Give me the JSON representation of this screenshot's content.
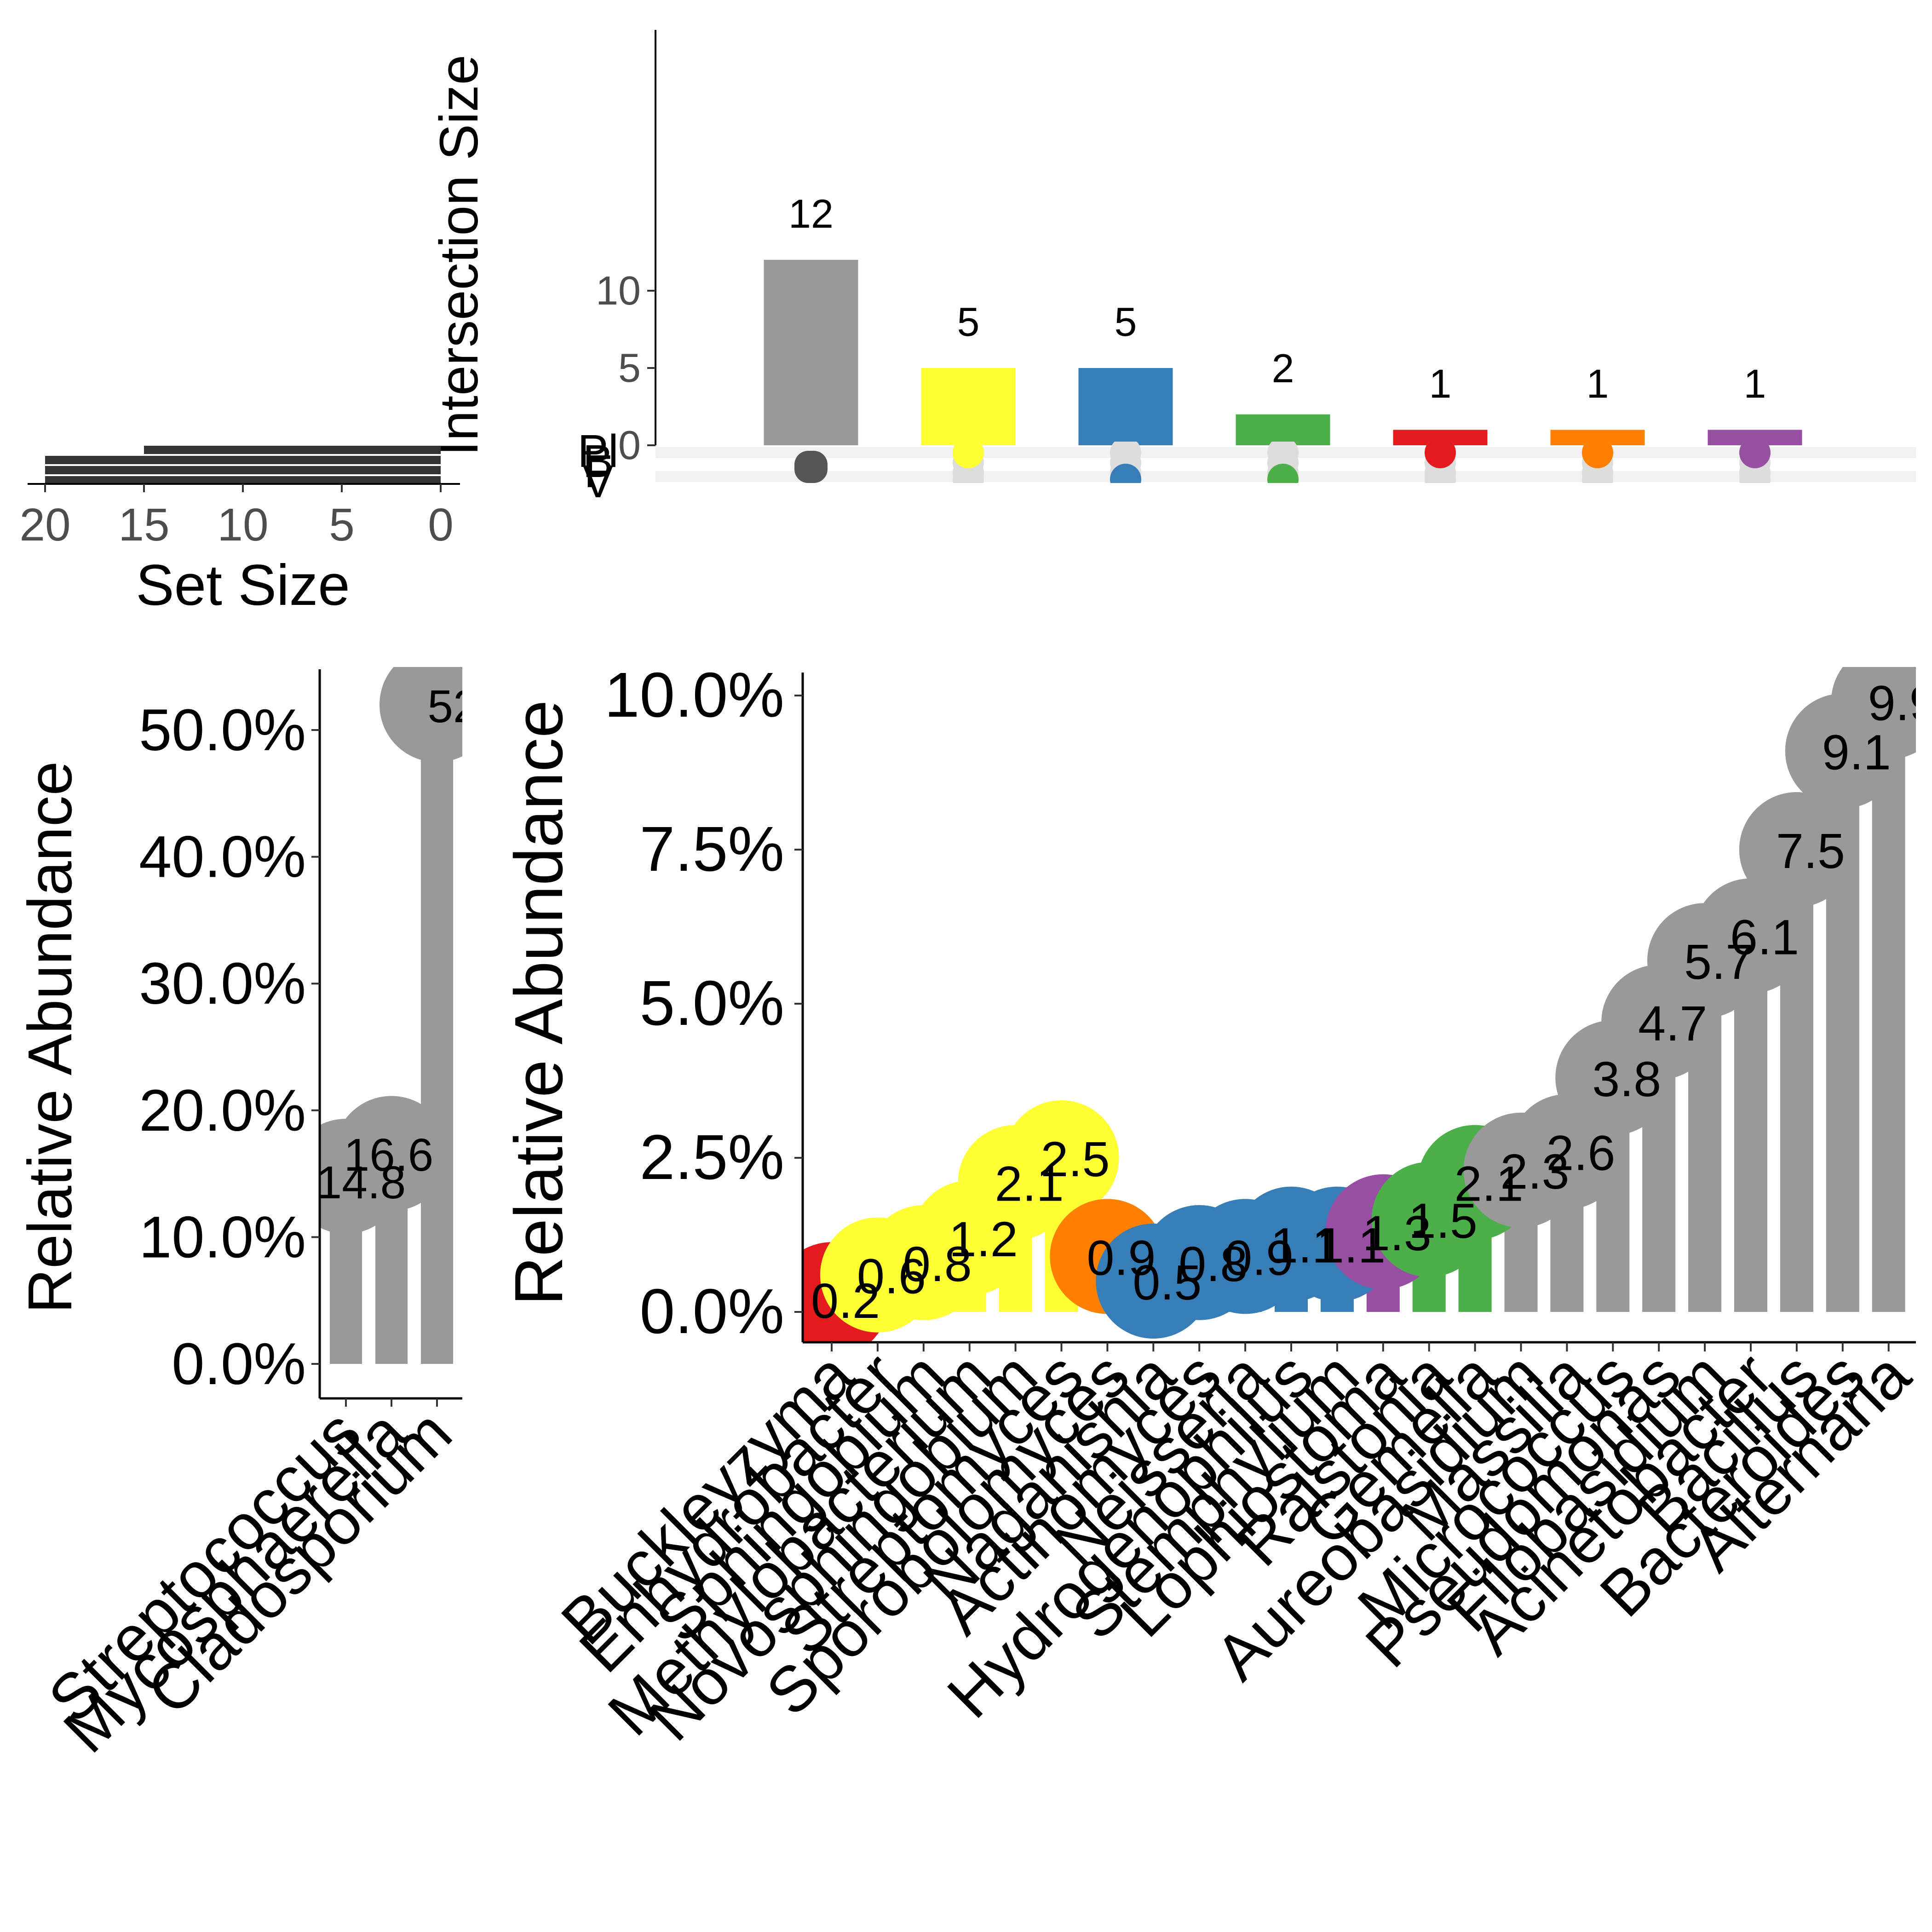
{
  "colors": {
    "gray": "#999999",
    "yellow": "#ffff33",
    "blue": "#377eb8",
    "green": "#4daf4a",
    "red": "#e41a1c",
    "orange": "#ff7f00",
    "purple": "#984ea3",
    "setbar": "#333333",
    "empty_dot": "#dddddd",
    "stripe": "#f2f2f2"
  },
  "chart_data": [
    {
      "type": "bar",
      "panel": "intersection-size",
      "ylabel": "Intersection Size",
      "yticks": [
        0,
        5,
        10
      ],
      "ylim": [
        0,
        13.5
      ],
      "categories": [
        "grey",
        "yellow",
        "blue",
        "green",
        "red",
        "orange",
        "purple"
      ],
      "values": [
        12,
        5,
        5,
        2,
        1,
        1,
        1
      ],
      "value_labels": [
        "12",
        "5",
        "5",
        "2",
        "1",
        "1",
        "1"
      ]
    },
    {
      "type": "bar",
      "panel": "set-size",
      "xlabel": "Set Size",
      "xticks": [
        20,
        15,
        10,
        5,
        0
      ],
      "xlim": [
        20,
        0
      ],
      "sets": [
        "Pl",
        "B",
        "F",
        "V"
      ],
      "values": [
        15,
        20,
        20,
        20
      ]
    },
    {
      "type": "bar",
      "panel": "core-abundance",
      "ylabel": "Relative Abundance",
      "yticks": [
        "0.0%",
        "10.0%",
        "20.0%",
        "30.0%",
        "40.0%",
        "50.0%"
      ],
      "ylim": [
        0,
        55
      ],
      "categories": [
        "Streptococcus",
        "Mycosphaerella",
        "Cladosporium"
      ],
      "values": [
        14.8,
        16.6,
        52
      ],
      "value_labels": [
        "14.8",
        "16.6",
        "52"
      ]
    },
    {
      "type": "bar",
      "panel": "genus-abundance",
      "ylabel": "Relative Abundance",
      "yticks": [
        "0.0%",
        "2.5%",
        "5.0%",
        "7.5%",
        "10.0%"
      ],
      "ylim": [
        0,
        10.2
      ],
      "categories": [
        "Buckleyzyma",
        "Enhydrobacter",
        "Sphingobium",
        "Methylobacterium",
        "Novosphingobium",
        "Streptomyces",
        "Sporobolomyces",
        "Naganishia",
        "Actinomyces",
        "Neisseria",
        "Hydrogenophilus",
        "Stemphylium",
        "Lophiostoma",
        "Ralstonia",
        "Gemella",
        "Aureobasidium",
        "Massilia",
        "Micrococcus",
        "Pseudomonas",
        "Filobasidium",
        "Acinetobacter",
        "Bacillus",
        "Bacteroides",
        "Alternaria"
      ],
      "values": [
        0.2,
        0.6,
        0.8,
        1.2,
        2.1,
        2.5,
        0.9,
        0.5,
        0.8,
        0.9,
        1.1,
        1.1,
        1.3,
        1.5,
        2.1,
        2.3,
        2.6,
        3.8,
        4.7,
        5.7,
        6.1,
        7.5,
        9.1,
        9.9
      ],
      "value_labels": [
        "0.2",
        "0.6",
        "0.8",
        "1.2",
        "2.1",
        "2.5",
        "0.9",
        "0.5",
        "0.8",
        "0.9",
        "1.1",
        "1.1",
        "1.3",
        "1.5",
        "2.1",
        "2.3",
        "2.6",
        "3.8",
        "4.7",
        "5.7",
        "6.1",
        "7.5",
        "9.1",
        "9.9"
      ],
      "group_colors": [
        "red",
        "yellow",
        "yellow",
        "yellow",
        "yellow",
        "yellow",
        "orange",
        "blue",
        "blue",
        "blue",
        "blue",
        "blue",
        "purple",
        "green",
        "green",
        "gray",
        "gray",
        "gray",
        "gray",
        "gray",
        "gray",
        "gray",
        "gray",
        "gray"
      ]
    }
  ]
}
